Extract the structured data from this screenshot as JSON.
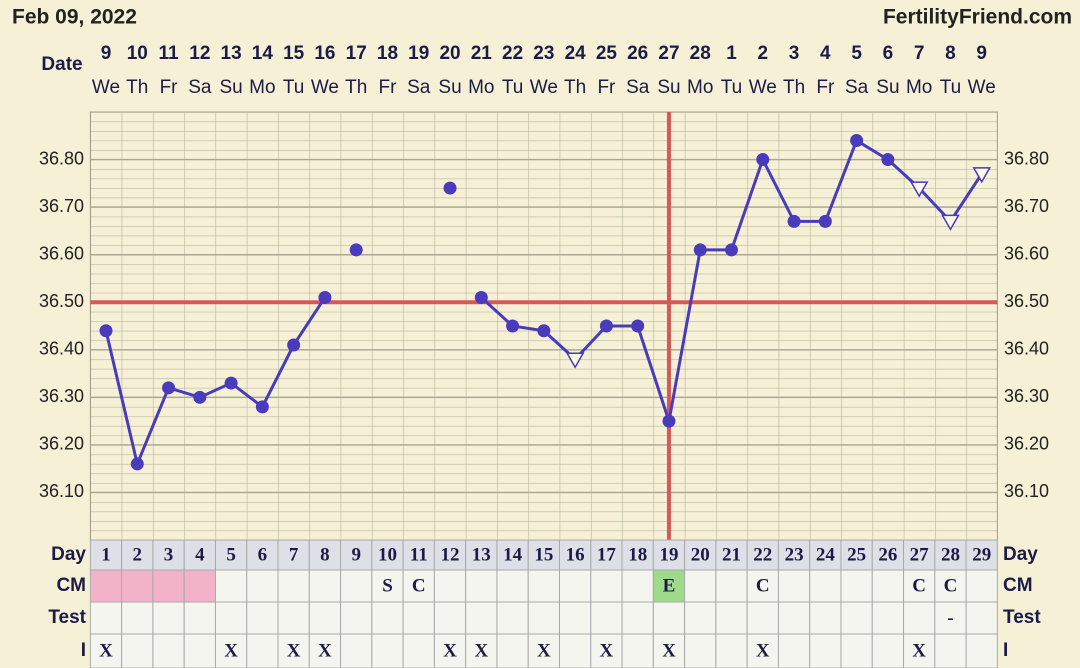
{
  "header": {
    "date": "Feb 09, 2022",
    "site": "FertilityFriend.com"
  },
  "chart_data": {
    "type": "line",
    "date_label": "Date",
    "dates": [
      "9",
      "10",
      "11",
      "12",
      "13",
      "14",
      "15",
      "16",
      "17",
      "18",
      "19",
      "20",
      "21",
      "22",
      "23",
      "24",
      "25",
      "26",
      "27",
      "28",
      "1",
      "2",
      "3",
      "4",
      "5",
      "6",
      "7",
      "8",
      "9"
    ],
    "weekdays": [
      "We",
      "Th",
      "Fr",
      "Sa",
      "Su",
      "Mo",
      "Tu",
      "We",
      "Th",
      "Fr",
      "Sa",
      "Su",
      "Mo",
      "Tu",
      "We",
      "Th",
      "Fr",
      "Sa",
      "Su",
      "Mo",
      "Tu",
      "We",
      "Th",
      "Fr",
      "Sa",
      "Su",
      "Mo",
      "Tu",
      "We"
    ],
    "series": [
      {
        "color": "#4a3abc",
        "connect": true,
        "values": [
          36.44,
          36.16,
          36.32,
          36.3,
          36.33,
          36.28,
          36.41,
          36.51,
          null,
          null,
          null,
          null,
          36.51,
          36.45,
          36.44,
          36.38,
          36.45,
          36.45,
          36.25,
          36.61,
          36.61,
          36.8,
          36.67,
          36.67,
          36.84,
          36.8,
          36.74,
          36.67,
          36.77
        ],
        "markers": [
          "circle",
          "circle",
          "circle",
          "circle",
          "circle",
          "circle",
          "circle",
          "circle",
          null,
          null,
          null,
          null,
          "circle",
          "circle",
          "circle",
          "triangle",
          "circle",
          "circle",
          "circle",
          "circle",
          "circle",
          "circle",
          "circle",
          "circle",
          "circle",
          "circle",
          "triangle",
          "triangle",
          "triangle"
        ]
      },
      {
        "color": "#4a3abc",
        "connect": false,
        "values": [
          null,
          null,
          null,
          null,
          null,
          null,
          null,
          null,
          36.61,
          null,
          null,
          36.74,
          null,
          null,
          null,
          null,
          null,
          null,
          null,
          null,
          null,
          null,
          null,
          null,
          null,
          null,
          null,
          null,
          null
        ]
      }
    ],
    "ylim": [
      36.0,
      36.9
    ],
    "yticks": [
      {
        "value": 36.1,
        "label": "36.10"
      },
      {
        "value": 36.2,
        "label": "36.20"
      },
      {
        "value": 36.3,
        "label": "36.30"
      },
      {
        "value": 36.4,
        "label": "36.40"
      },
      {
        "value": 36.5,
        "label": "36.50"
      },
      {
        "value": 36.6,
        "label": "36.60"
      },
      {
        "value": 36.7,
        "label": "36.70"
      },
      {
        "value": 36.8,
        "label": "36.80"
      }
    ],
    "coverline": 36.5,
    "ovulation_day": 19,
    "reference_color": "#d45a5a",
    "grid": true
  },
  "table": {
    "row_labels": [
      "Day",
      "CM",
      "Test",
      "I"
    ],
    "days": [
      1,
      2,
      3,
      4,
      5,
      6,
      7,
      8,
      9,
      10,
      11,
      12,
      13,
      14,
      15,
      16,
      17,
      18,
      19,
      20,
      21,
      22,
      23,
      24,
      25,
      26,
      27,
      28,
      29
    ],
    "cm": [
      null,
      null,
      null,
      null,
      null,
      null,
      null,
      null,
      null,
      "S",
      "C",
      null,
      null,
      null,
      null,
      null,
      null,
      null,
      "E",
      null,
      null,
      "C",
      null,
      null,
      null,
      null,
      "C",
      "C",
      null
    ],
    "cm_colors": [
      "#f2b3c8",
      "#f2b3c8",
      "#f2b3c8",
      "#f2b3c8",
      null,
      null,
      null,
      null,
      null,
      null,
      null,
      null,
      null,
      null,
      null,
      null,
      null,
      null,
      "#9fd98a",
      null,
      null,
      null,
      null,
      null,
      null,
      null,
      null,
      null,
      null
    ],
    "test": [
      null,
      null,
      null,
      null,
      null,
      null,
      null,
      null,
      null,
      null,
      null,
      null,
      null,
      null,
      null,
      null,
      null,
      null,
      null,
      null,
      null,
      null,
      null,
      null,
      null,
      null,
      null,
      "-",
      null
    ],
    "i": [
      "X",
      null,
      null,
      null,
      "X",
      null,
      "X",
      "X",
      null,
      null,
      null,
      "X",
      "X",
      null,
      "X",
      null,
      "X",
      null,
      "X",
      null,
      null,
      "X",
      null,
      null,
      null,
      null,
      "X",
      null,
      null
    ]
  }
}
